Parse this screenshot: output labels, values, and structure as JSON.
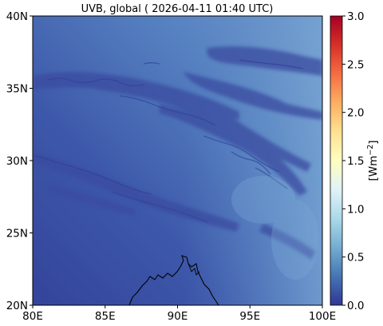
{
  "title": "UVB, global ( 2026-04-11 01:40 UTC)",
  "map": {
    "x_ticks": [
      "80E",
      "85E",
      "90E",
      "95E",
      "100E"
    ],
    "y_ticks": [
      "20N",
      "25N",
      "30N",
      "35N",
      "40N"
    ],
    "lon_range": [
      80,
      100
    ],
    "lat_range": [
      20,
      40
    ]
  },
  "colorbar": {
    "label": "[Wm⁻²]",
    "ticks": [
      "0.0",
      "0.5",
      "1.0",
      "1.5",
      "2.0",
      "2.5",
      "3.0"
    ],
    "range": [
      0,
      3
    ],
    "colormap": "RdYlBu_r",
    "colors": [
      "#313695",
      "#4575b4",
      "#74add1",
      "#abd9e9",
      "#e0f3f8",
      "#ffffbf",
      "#fee090",
      "#fdae61",
      "#f46d43",
      "#d73027",
      "#a50026"
    ]
  },
  "field": {
    "base_color_west": "#3a55a8",
    "base_color_east": "#6f9bcf",
    "cloud_color": "#3b4ba0"
  }
}
